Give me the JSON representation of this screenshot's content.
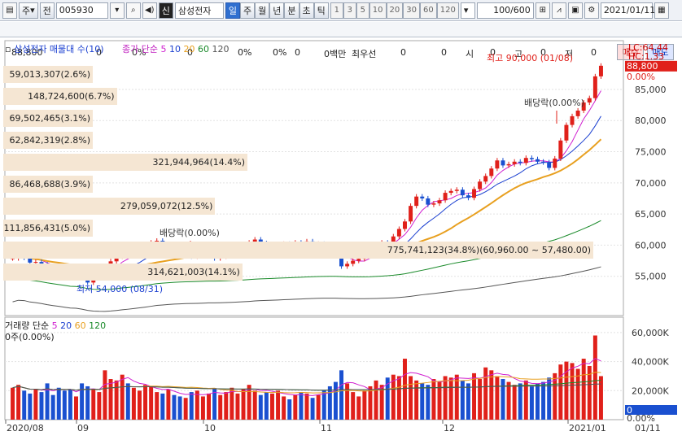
{
  "toolbar": {
    "market": "주",
    "period_type": "전",
    "code": "005930",
    "name_badge": "신",
    "stock_name": "삼성전자",
    "periods": [
      "일",
      "주",
      "월",
      "년",
      "분",
      "초",
      "틱"
    ],
    "active_period": "일",
    "intervals": [
      "1",
      "3",
      "5",
      "10",
      "20",
      "30",
      "60",
      "120"
    ],
    "count": "100/600",
    "date": "2021/01/11"
  },
  "info": {
    "price": "88,800",
    "v1": "0",
    "p1": "0%",
    "v2": "0",
    "p2": "0%",
    "v3": "0",
    "p3": "0%",
    "amount": "0백만",
    "pref_label": "최우선",
    "pv1": "0",
    "pv2": "0",
    "si_label": "시",
    "si": "0",
    "go_label": "고",
    "go": "0",
    "jeo_label": "저",
    "jeo": "0",
    "buy": "매수",
    "sell": "매도"
  },
  "legend": {
    "title": "삼성전자 매물대 수(10)",
    "ma_label": "종가 단순",
    "ma_periods": [
      "5",
      "10",
      "20",
      "60",
      "120"
    ],
    "ma_colors": [
      "#d020d0",
      "#1a3fd0",
      "#e8a020",
      "#1a8a2a",
      "#555555"
    ],
    "lc": "LC:64.44",
    "hc": "HC:1.33",
    "vol_label": "거래량 단순",
    "vol_periods": [
      "5",
      "20",
      "60",
      "120"
    ],
    "vol_unit": "0주(0.00%)"
  },
  "volume_profile": [
    {
      "label": "59,013,307(2.6%)",
      "pct": 2.6
    },
    {
      "label": "148,724,600(6.7%)",
      "pct": 6.7
    },
    {
      "label": "69,502,465(3.1%)",
      "pct": 3.1
    },
    {
      "label": "62,842,319(2.8%)",
      "pct": 2.8
    },
    {
      "label": "321,944,964(14.4%)",
      "pct": 14.4
    },
    {
      "label": "86,468,688(3.9%)",
      "pct": 3.9
    },
    {
      "label": "279,059,072(12.5%)",
      "pct": 12.5
    },
    {
      "label": "111,856,431(5.0%)",
      "pct": 5.0
    },
    {
      "label": "775,741,123(34.8%)(60,960.00 ~ 57,480.00)",
      "pct": 34.8
    },
    {
      "label": "314,621,003(14.1%)",
      "pct": 14.1
    }
  ],
  "annotations": {
    "high": "최고 90,000 (01/08)",
    "low": "최저 54,000 (08/31)",
    "div1": "배당락(0.00%)",
    "div2": "배당락(0.00%)"
  },
  "price_axis": {
    "current": "88,800",
    "pct": "0.00%",
    "ticks": [
      "85,000",
      "80,000",
      "75,000",
      "70,000",
      "65,000",
      "60,000",
      "55,000"
    ]
  },
  "volume_axis": {
    "ticks": [
      "60,000K",
      "40,000K",
      "20,000K"
    ],
    "current": "0",
    "pct": "0.00%"
  },
  "x_axis": {
    "labels": [
      "2020/08",
      "09",
      "10",
      "11",
      "12",
      "2021/01"
    ],
    "right": "01/11"
  },
  "chart_data": {
    "type": "candlestick",
    "ylim": [
      50000,
      91000
    ],
    "volume_ylim": [
      0,
      65000
    ],
    "closes": [
      57900,
      58400,
      58000,
      57200,
      57300,
      56900,
      56400,
      56300,
      56200,
      55800,
      55500,
      56500,
      55000,
      54000,
      54800,
      55800,
      56200,
      57400,
      58200,
      58800,
      58400,
      59000,
      59400,
      59900,
      60400,
      60700,
      59300,
      59500,
      59200,
      58800,
      58800,
      58200,
      58600,
      58700,
      59000,
      57900,
      58200,
      58900,
      59400,
      59500,
      59900,
      60400,
      60900,
      60300,
      59500,
      59700,
      60100,
      60200,
      60000,
      60400,
      60300,
      60600,
      60100,
      60200,
      59700,
      58900,
      58300,
      56600,
      57000,
      57500,
      57800,
      58300,
      59000,
      60100,
      60400,
      60300,
      61400,
      62600,
      63800,
      66300,
      67800,
      67500,
      66500,
      66700,
      67200,
      68400,
      68700,
      68900,
      68000,
      67600,
      69000,
      70200,
      71100,
      72300,
      73600,
      72800,
      73000,
      73400,
      73200,
      74000,
      73800,
      73400,
      73300,
      72400,
      73900,
      76800,
      79300,
      80700,
      81600,
      82900,
      83600,
      87100,
      88800
    ],
    "volumes": [
      22000,
      24000,
      20000,
      18000,
      21000,
      19000,
      25000,
      17000,
      22000,
      20000,
      21000,
      16000,
      25000,
      23000,
      21000,
      19000,
      34000,
      28000,
      27000,
      31000,
      25000,
      22000,
      20000,
      24000,
      23000,
      19000,
      18000,
      21000,
      17000,
      16000,
      15000,
      19000,
      20000,
      16000,
      18000,
      21000,
      17000,
      19000,
      22000,
      18000,
      21000,
      24000,
      20000,
      17000,
      19000,
      18000,
      20000,
      16000,
      14000,
      17000,
      19000,
      18000,
      15000,
      17000,
      20000,
      23000,
      26000,
      34000,
      25000,
      19000,
      16000,
      20000,
      23000,
      27000,
      24000,
      29000,
      31000,
      30000,
      42000,
      30000,
      27000,
      25000,
      24000,
      28000,
      26000,
      30000,
      29000,
      31000,
      27000,
      25000,
      32000,
      28000,
      36000,
      34000,
      30000,
      28000,
      26000,
      24000,
      25000,
      27000,
      23000,
      25000,
      26000,
      29000,
      32000,
      38000,
      40000,
      39000,
      35000,
      42000,
      37000,
      58000,
      30000
    ]
  }
}
